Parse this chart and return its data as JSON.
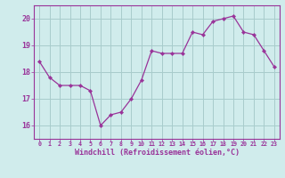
{
  "x": [
    0,
    1,
    2,
    3,
    4,
    5,
    6,
    7,
    8,
    9,
    10,
    11,
    12,
    13,
    14,
    15,
    16,
    17,
    18,
    19,
    20,
    21,
    22,
    23
  ],
  "y": [
    18.4,
    17.8,
    17.5,
    17.5,
    17.5,
    17.3,
    16.0,
    16.4,
    16.5,
    17.0,
    17.7,
    18.8,
    18.7,
    18.7,
    18.7,
    19.5,
    19.4,
    19.9,
    20.0,
    20.1,
    19.5,
    19.4,
    18.8,
    18.2
  ],
  "line_color": "#993399",
  "marker_color": "#993399",
  "bg_color": "#d0ecec",
  "grid_color": "#a8cccc",
  "axis_color": "#993399",
  "tick_color": "#993399",
  "xlabel": "Windchill (Refroidissement éolien,°C)",
  "xlim": [
    -0.5,
    23.5
  ],
  "ylim": [
    15.5,
    20.5
  ],
  "yticks": [
    16,
    17,
    18,
    19,
    20
  ],
  "xticks": [
    0,
    1,
    2,
    3,
    4,
    5,
    6,
    7,
    8,
    9,
    10,
    11,
    12,
    13,
    14,
    15,
    16,
    17,
    18,
    19,
    20,
    21,
    22,
    23
  ],
  "xlabel_fontsize": 6.0,
  "xtick_fontsize": 4.8,
  "ytick_fontsize": 6.0,
  "linewidth": 0.9,
  "markersize": 2.2
}
